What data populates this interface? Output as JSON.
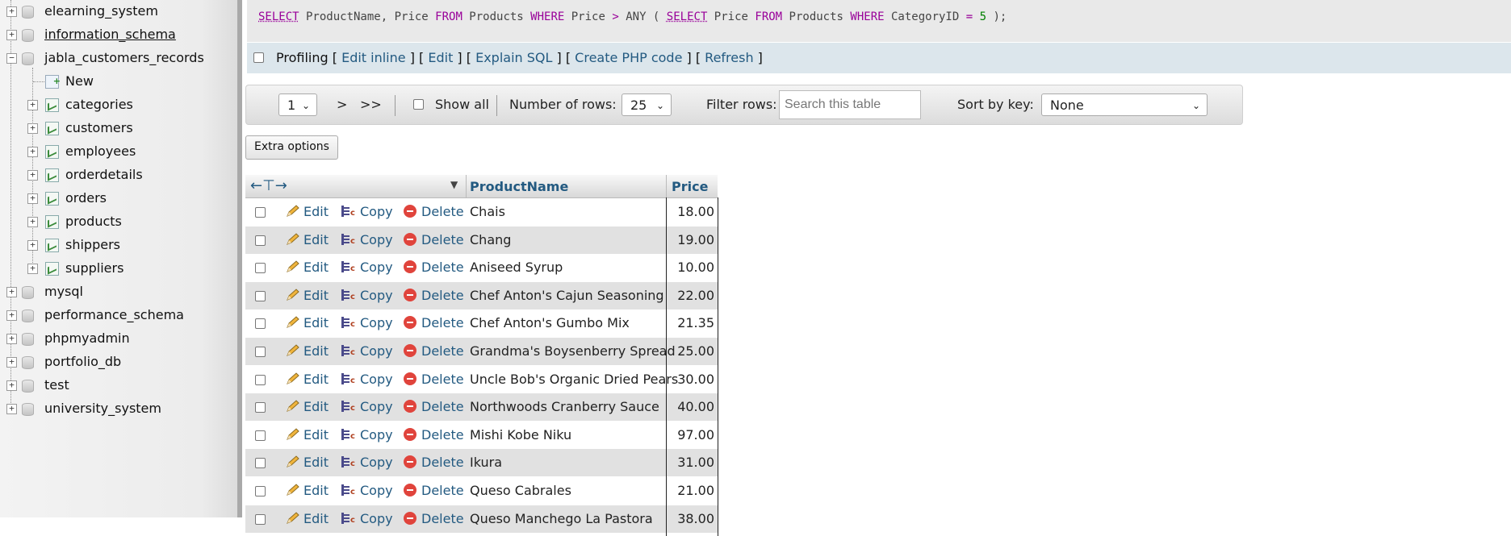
{
  "sidebar": {
    "databases": [
      {
        "name": "elearning_system",
        "expander": "+"
      },
      {
        "name": "information_schema",
        "expander": "+"
      },
      {
        "name": "jabla_customers_records",
        "expander": "−"
      }
    ],
    "new_label": "New",
    "tables": [
      "categories",
      "customers",
      "employees",
      "orderdetails",
      "orders",
      "products",
      "shippers",
      "suppliers"
    ],
    "more_databases": [
      "mysql",
      "performance_schema",
      "phpmyadmin",
      "portfolio_db",
      "test",
      "university_system"
    ]
  },
  "sql": {
    "parts": [
      "SELECT",
      " ProductName, Price ",
      "FROM",
      " Products ",
      "WHERE",
      " Price ",
      ">",
      " ANY ( ",
      "SELECT",
      " Price ",
      "FROM",
      " Products ",
      "WHERE",
      " CategoryID ",
      "=",
      " ",
      "5",
      " );"
    ]
  },
  "profiling": {
    "label": "Profiling",
    "links": [
      "Edit inline",
      "Edit",
      "Explain SQL",
      "Create PHP code",
      "Refresh"
    ]
  },
  "nav": {
    "page_value": "1",
    "next": ">",
    "last": ">>",
    "show_all": "Show all",
    "rows_label": "Number of rows:",
    "rows_value": "25",
    "filter_label": "Filter rows:",
    "filter_placeholder": "Search this table",
    "sort_label": "Sort by key:",
    "sort_value": "None"
  },
  "extra_options": "Extra options",
  "table": {
    "columns": [
      "ProductName",
      "Price"
    ],
    "actions": {
      "edit": "Edit",
      "copy": "Copy",
      "delete": "Delete"
    },
    "rows": [
      {
        "name": "Chais",
        "price": "18.00"
      },
      {
        "name": "Chang",
        "price": "19.00"
      },
      {
        "name": "Aniseed Syrup",
        "price": "10.00"
      },
      {
        "name": "Chef Anton's Cajun Seasoning",
        "price": "22.00"
      },
      {
        "name": "Chef Anton's Gumbo Mix",
        "price": "21.35"
      },
      {
        "name": "Grandma's Boysenberry Spread",
        "price": "25.00"
      },
      {
        "name": "Uncle Bob's Organic Dried Pears",
        "price": "30.00"
      },
      {
        "name": "Northwoods Cranberry Sauce",
        "price": "40.00"
      },
      {
        "name": "Mishi Kobe Niku",
        "price": "97.00"
      },
      {
        "name": "Ikura",
        "price": "31.00"
      },
      {
        "name": "Queso Cabrales",
        "price": "21.00"
      },
      {
        "name": "Queso Manchego La Pastora",
        "price": "38.00"
      }
    ]
  },
  "colors": {
    "link": "#235a81",
    "keyword": "#990099",
    "number": "#008000",
    "delete": "#e0443c"
  }
}
